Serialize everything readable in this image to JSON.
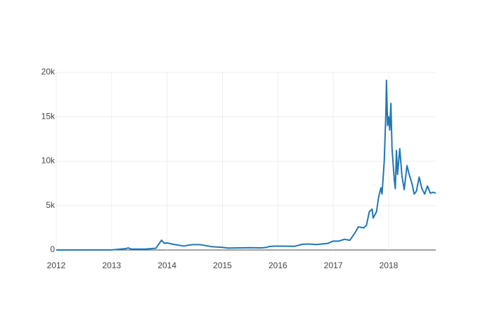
{
  "chart_data": {
    "type": "line",
    "x": [
      2012.0,
      2012.5,
      2013.0,
      2013.25,
      2013.3,
      2013.35,
      2013.6,
      2013.8,
      2013.9,
      2013.95,
      2014.0,
      2014.1,
      2014.2,
      2014.3,
      2014.45,
      2014.6,
      2014.8,
      2015.0,
      2015.1,
      2015.3,
      2015.5,
      2015.7,
      2015.8,
      2015.85,
      2015.95,
      2016.0,
      2016.3,
      2016.45,
      2016.55,
      2016.7,
      2016.9,
      2017.0,
      2017.1,
      2017.2,
      2017.3,
      2017.4,
      2017.45,
      2017.55,
      2017.6,
      2017.65,
      2017.7,
      2017.72,
      2017.78,
      2017.82,
      2017.86,
      2017.88,
      2017.92,
      2017.95,
      2017.96,
      2017.98,
      2018.0,
      2018.02,
      2018.04,
      2018.06,
      2018.1,
      2018.12,
      2018.14,
      2018.16,
      2018.2,
      2018.24,
      2018.28,
      2018.33,
      2018.37,
      2018.42,
      2018.46,
      2018.5,
      2018.55,
      2018.6,
      2018.65,
      2018.7,
      2018.75,
      2018.8,
      2018.85
    ],
    "values": [
      5,
      7,
      13,
      150,
      230,
      110,
      100,
      200,
      1100,
      750,
      800,
      650,
      550,
      450,
      600,
      600,
      380,
      300,
      220,
      240,
      260,
      240,
      300,
      400,
      430,
      430,
      420,
      650,
      670,
      610,
      740,
      1000,
      1000,
      1200,
      1100,
      2000,
      2600,
      2500,
      2800,
      4300,
      4600,
      3600,
      4300,
      6000,
      7000,
      6300,
      10000,
      15500,
      19100,
      14000,
      15000,
      13500,
      16500,
      11500,
      8000,
      6900,
      11200,
      8500,
      11400,
      8300,
      6800,
      9500,
      8500,
      7500,
      6300,
      6600,
      8200,
      6900,
      6300,
      7200,
      6400,
      6500,
      6400
    ],
    "color": "#1f77b4",
    "xlim": [
      2012,
      2018.85
    ],
    "xticks": [
      2012,
      2013,
      2014,
      2015,
      2016,
      2017,
      2018
    ],
    "ylim": [
      0,
      20000
    ],
    "yticks": [
      0,
      {
        "value": 5000,
        "label": "5k"
      },
      {
        "value": 10000,
        "label": "10k"
      },
      {
        "value": 15000,
        "label": "15k"
      },
      {
        "value": 20000,
        "label": "20k"
      }
    ],
    "grid": true
  }
}
